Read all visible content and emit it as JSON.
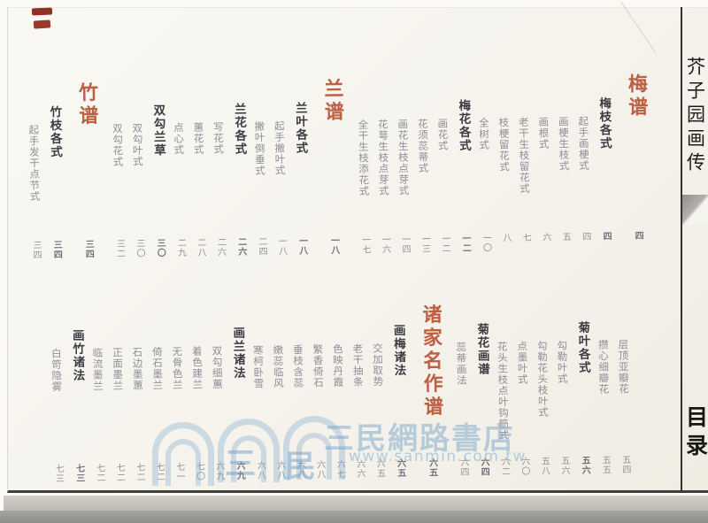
{
  "book": {
    "title": "芥子园画传",
    "toc_label": "目录"
  },
  "colors": {
    "section_red": "#bc5f42",
    "heading_ink": "#3c3c44",
    "entry_gray": "#8e8e98",
    "stamp_red": "#8f3128",
    "watermark_blue": "#7ca8ce"
  },
  "toc_row1": [
    {
      "type": "section",
      "label": "梅谱",
      "page": "四"
    },
    {
      "type": "sub",
      "label": "梅枝各式",
      "page": "四"
    },
    {
      "type": "entry",
      "label": "起手画梗式",
      "page": "四"
    },
    {
      "type": "entry",
      "label": "画梗生枝式",
      "page": "五"
    },
    {
      "type": "entry",
      "label": "画根式",
      "page": "六"
    },
    {
      "type": "entry",
      "label": "老干生枝留花式",
      "page": "七"
    },
    {
      "type": "entry",
      "label": "枝梗留花式",
      "page": "八"
    },
    {
      "type": "entry",
      "label": "全树式",
      "page": "一〇"
    },
    {
      "type": "sub",
      "label": "梅花各式",
      "page": "一二"
    },
    {
      "type": "entry",
      "label": "画花式",
      "page": "一二"
    },
    {
      "type": "entry",
      "label": "花须蕊蒂式",
      "page": "一三"
    },
    {
      "type": "entry",
      "label": "画花生枝点芽式",
      "page": "一四"
    },
    {
      "type": "entry",
      "label": "花萼生枝点芽式",
      "page": "一六"
    },
    {
      "type": "entry",
      "label": "全干生枝添花式",
      "page": "一七"
    },
    {
      "type": "section",
      "label": "兰谱",
      "page": "一八"
    },
    {
      "type": "sub",
      "label": "兰叶各式",
      "page": "一八"
    },
    {
      "type": "entry",
      "label": "起手撇叶式",
      "page": "一八"
    },
    {
      "type": "entry",
      "label": "撇叶倒垂式",
      "page": "二四"
    },
    {
      "type": "sub",
      "label": "兰花各式",
      "page": "二六"
    },
    {
      "type": "entry",
      "label": "写花式",
      "page": "二六"
    },
    {
      "type": "entry",
      "label": "蕙花式",
      "page": "二八"
    },
    {
      "type": "entry",
      "label": "点心式",
      "page": "二九"
    },
    {
      "type": "sub",
      "label": "双勾兰草",
      "page": "三〇"
    },
    {
      "type": "entry",
      "label": "双勾叶式",
      "page": "三〇"
    },
    {
      "type": "entry",
      "label": "双勾花式",
      "page": "三二"
    },
    {
      "type": "section",
      "label": "竹谱",
      "page": "三四"
    },
    {
      "type": "sub",
      "label": "竹枝各式",
      "page": "三四"
    },
    {
      "type": "entry",
      "label": "起手发干点节式",
      "page": "三四"
    }
  ],
  "toc_row2": [
    {
      "type": "entry",
      "label": "层顶亚瓣花",
      "page": "五四"
    },
    {
      "type": "entry",
      "label": "攒心细瓣花",
      "page": "五五"
    },
    {
      "type": "sub",
      "label": "菊叶各式",
      "page": "五六"
    },
    {
      "type": "entry",
      "label": "勾勒叶式",
      "page": "五六"
    },
    {
      "type": "entry",
      "label": "勾勒花头枝叶式",
      "page": "五八"
    },
    {
      "type": "entry",
      "label": "点墨叶式",
      "page": "六〇"
    },
    {
      "type": "entry",
      "label": "花头生枝点叶钩筋式",
      "page": "六二"
    },
    {
      "type": "sub",
      "label": "菊花画谱",
      "page": "六四"
    },
    {
      "type": "entry",
      "label": "蕊蒂画法",
      "page": "六四"
    },
    {
      "type": "section",
      "label": "诸家名作谱",
      "page": "六五"
    },
    {
      "type": "sub",
      "label": "画梅诸法",
      "page": "六五"
    },
    {
      "type": "entry",
      "label": "交加取势",
      "page": "六五"
    },
    {
      "type": "entry",
      "label": "老干抽条",
      "page": "六六"
    },
    {
      "type": "entry",
      "label": "色映丹霞",
      "page": "六七"
    },
    {
      "type": "entry",
      "label": "繁香倚石",
      "page": "六八"
    },
    {
      "type": "entry",
      "label": "垂枝含蕊",
      "page": "六八"
    },
    {
      "type": "entry",
      "label": "嫩蕊临风",
      "page": "六八"
    },
    {
      "type": "entry",
      "label": "寒柯卧雪",
      "page": "六八"
    },
    {
      "type": "sub",
      "label": "画兰诸法",
      "page": "六九"
    },
    {
      "type": "entry",
      "label": "双勾细蕙",
      "page": "六九"
    },
    {
      "type": "entry",
      "label": "着色建兰",
      "page": "七〇"
    },
    {
      "type": "entry",
      "label": "无骨色兰",
      "page": "七一"
    },
    {
      "type": "entry",
      "label": "倚石墨兰",
      "page": "七二"
    },
    {
      "type": "entry",
      "label": "石边墨蕙",
      "page": "七二"
    },
    {
      "type": "entry",
      "label": "正面墨兰",
      "page": "七二"
    },
    {
      "type": "entry",
      "label": "临流墨兰",
      "page": "七二"
    },
    {
      "type": "sub",
      "label": "画竹诸法",
      "page": "七三"
    },
    {
      "type": "entry",
      "label": "白笴隐雾",
      "page": "七三"
    }
  ],
  "watermark": {
    "logo_char_1": "三",
    "logo_char_2": "民",
    "store_name": "三民網路書店",
    "url": "www.sanmin.com.tw"
  }
}
